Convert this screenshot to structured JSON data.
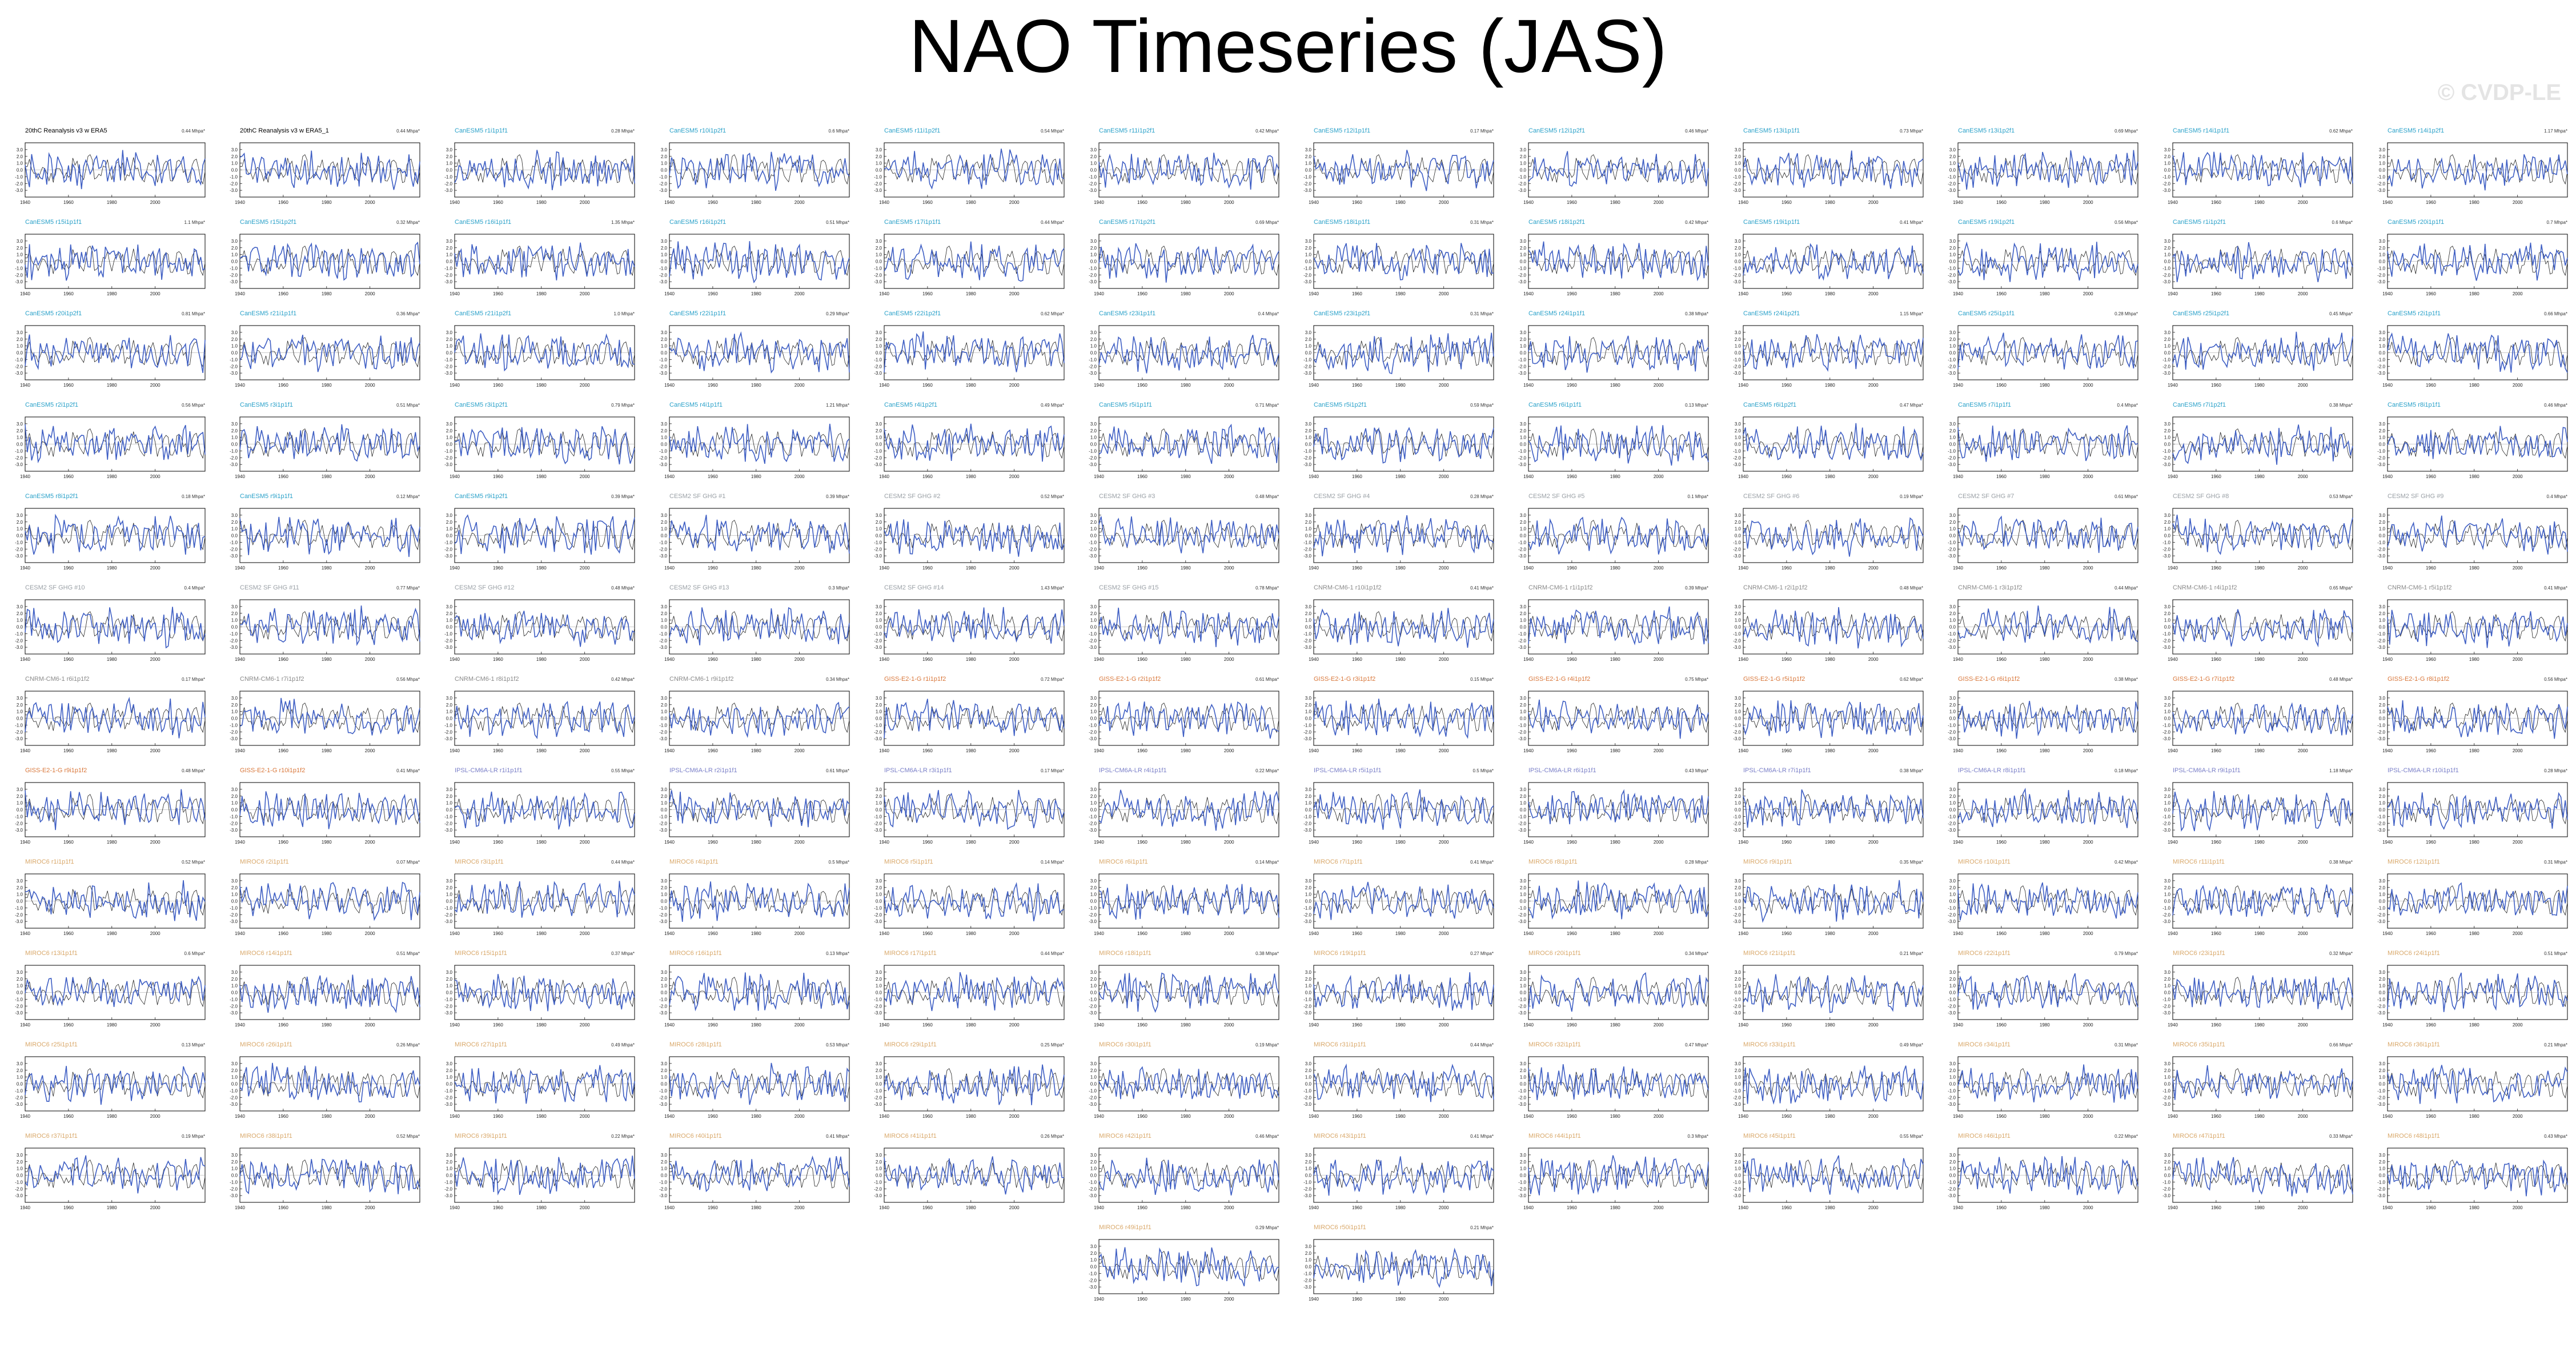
{
  "title": "NAO Timeseries (JAS)",
  "watermark": "© CVDP-LE",
  "colors": {
    "model_line": "#3f5fc4",
    "obs_line": "#222222",
    "title_obs": "#000000",
    "title_cesm": "#2aa1c9",
    "title_cesm_sf": "#9aa0a6",
    "title_cnrm": "#8a8a8a",
    "title_giss": "#d9773a",
    "title_ipsl": "#7a7fc8",
    "title_miroc": "#d9a86a"
  },
  "chart_data": {
    "type": "line",
    "layout": "panel-grid",
    "xlim": [
      1940,
      2023
    ],
    "ylim": [
      -4,
      4
    ],
    "xticks": [
      1940,
      1960,
      1980,
      2000
    ],
    "yticks": [
      3.0,
      2.0,
      1.0,
      0.0,
      -1.0,
      -2.0,
      -3.0
    ],
    "panels": [
      {
        "title": "20thC Reanalysis v3 w ERA5",
        "group": "obs",
        "stat": "0.44 Mhpa*",
        "seed": 1
      },
      {
        "title": "20thC Reanalysis v3 w ERA5_1",
        "group": "obs",
        "stat": "0.44 Mhpa*",
        "seed": 2
      },
      {
        "title": "CanESM5 r1i1p1f1",
        "group": "cesm",
        "stat": "0.28 Mhpa*",
        "seed": 3
      },
      {
        "title": "CanESM5 r10i1p2f1",
        "group": "cesm",
        "stat": "0.6 Mhpa*",
        "seed": 4
      },
      {
        "title": "CanESM5 r11i1p2f1",
        "group": "cesm",
        "stat": "0.54 Mhpa*",
        "seed": 5
      },
      {
        "title": "CanESM5 r11i1p2f1",
        "group": "cesm",
        "stat": "0.42 Mhpa*",
        "seed": 6
      },
      {
        "title": "CanESM5 r12i1p1f1",
        "group": "cesm",
        "stat": "0.17 Mhpa*",
        "seed": 7
      },
      {
        "title": "CanESM5 r12i1p2f1",
        "group": "cesm",
        "stat": "0.46 Mhpa*",
        "seed": 8
      },
      {
        "title": "CanESM5 r13i1p1f1",
        "group": "cesm",
        "stat": "0.73 Mhpa*",
        "seed": 9
      },
      {
        "title": "CanESM5 r13i1p2f1",
        "group": "cesm",
        "stat": "0.69 Mhpa*",
        "seed": 10
      },
      {
        "title": "CanESM5 r14i1p1f1",
        "group": "cesm",
        "stat": "0.62 Mhpa*",
        "seed": 11
      },
      {
        "title": "CanESM5 r14i1p2f1",
        "group": "cesm",
        "stat": "1.17 Mhpa*",
        "seed": 12
      },
      {
        "title": "CanESM5 r15i1p1f1",
        "group": "cesm",
        "stat": "1.1 Mhpa*",
        "seed": 13
      },
      {
        "title": "CanESM5 r15i1p2f1",
        "group": "cesm",
        "stat": "0.32 Mhpa*",
        "seed": 14
      },
      {
        "title": "CanESM5 r16i1p1f1",
        "group": "cesm",
        "stat": "1.35 Mhpa*",
        "seed": 15
      },
      {
        "title": "CanESM5 r16i1p2f1",
        "group": "cesm",
        "stat": "0.51 Mhpa*",
        "seed": 16
      },
      {
        "title": "CanESM5 r17i1p1f1",
        "group": "cesm",
        "stat": "0.44 Mhpa*",
        "seed": 17
      },
      {
        "title": "CanESM5 r17i1p2f1",
        "group": "cesm",
        "stat": "0.69 Mhpa*",
        "seed": 18
      },
      {
        "title": "CanESM5 r18i1p1f1",
        "group": "cesm",
        "stat": "0.31 Mhpa*",
        "seed": 19
      },
      {
        "title": "CanESM5 r18i1p2f1",
        "group": "cesm",
        "stat": "0.42 Mhpa*",
        "seed": 20
      },
      {
        "title": "CanESM5 r19i1p1f1",
        "group": "cesm",
        "stat": "0.41 Mhpa*",
        "seed": 21
      },
      {
        "title": "CanESM5 r19i1p2f1",
        "group": "cesm",
        "stat": "0.56 Mhpa*",
        "seed": 22
      },
      {
        "title": "CanESM5 r1i1p2f1",
        "group": "cesm",
        "stat": "0.6 Mhpa*",
        "seed": 23
      },
      {
        "title": "CanESM5 r20i1p1f1",
        "group": "cesm",
        "stat": "0.7 Mhpa*",
        "seed": 24
      },
      {
        "title": "CanESM5 r20i1p2f1",
        "group": "cesm",
        "stat": "0.81 Mhpa*",
        "seed": 25
      },
      {
        "title": "CanESM5 r21i1p1f1",
        "group": "cesm",
        "stat": "0.36 Mhpa*",
        "seed": 26
      },
      {
        "title": "CanESM5 r21i1p2f1",
        "group": "cesm",
        "stat": "1.0 Mhpa*",
        "seed": 27
      },
      {
        "title": "CanESM5 r22i1p1f1",
        "group": "cesm",
        "stat": "0.29 Mhpa*",
        "seed": 28
      },
      {
        "title": "CanESM5 r22i1p2f1",
        "group": "cesm",
        "stat": "0.62 Mhpa*",
        "seed": 29
      },
      {
        "title": "CanESM5 r23i1p1f1",
        "group": "cesm",
        "stat": "0.4 Mhpa*",
        "seed": 30
      },
      {
        "title": "CanESM5 r23i1p2f1",
        "group": "cesm",
        "stat": "0.31 Mhpa*",
        "seed": 31
      },
      {
        "title": "CanESM5 r24i1p1f1",
        "group": "cesm",
        "stat": "0.38 Mhpa*",
        "seed": 32
      },
      {
        "title": "CanESM5 r24i1p2f1",
        "group": "cesm",
        "stat": "1.15 Mhpa*",
        "seed": 33
      },
      {
        "title": "CanESM5 r25i1p1f1",
        "group": "cesm",
        "stat": "0.28 Mhpa*",
        "seed": 34
      },
      {
        "title": "CanESM5 r25i1p2f1",
        "group": "cesm",
        "stat": "0.45 Mhpa*",
        "seed": 35
      },
      {
        "title": "CanESM5 r2i1p1f1",
        "group": "cesm",
        "stat": "0.66 Mhpa*",
        "seed": 36
      },
      {
        "title": "CanESM5 r2i1p2f1",
        "group": "cesm",
        "stat": "0.56 Mhpa*",
        "seed": 37
      },
      {
        "title": "CanESM5 r3i1p1f1",
        "group": "cesm",
        "stat": "0.51 Mhpa*",
        "seed": 38
      },
      {
        "title": "CanESM5 r3i1p2f1",
        "group": "cesm",
        "stat": "0.79 Mhpa*",
        "seed": 39
      },
      {
        "title": "CanESM5 r4i1p1f1",
        "group": "cesm",
        "stat": "1.21 Mhpa*",
        "seed": 40
      },
      {
        "title": "CanESM5 r4i1p2f1",
        "group": "cesm",
        "stat": "0.49 Mhpa*",
        "seed": 41
      },
      {
        "title": "CanESM5 r5i1p1f1",
        "group": "cesm",
        "stat": "0.71 Mhpa*",
        "seed": 42
      },
      {
        "title": "CanESM5 r5i1p2f1",
        "group": "cesm",
        "stat": "0.59 Mhpa*",
        "seed": 43
      },
      {
        "title": "CanESM5 r6i1p1f1",
        "group": "cesm",
        "stat": "0.13 Mhpa*",
        "seed": 44
      },
      {
        "title": "CanESM5 r6i1p2f1",
        "group": "cesm",
        "stat": "0.47 Mhpa*",
        "seed": 45
      },
      {
        "title": "CanESM5 r7i1p1f1",
        "group": "cesm",
        "stat": "0.4 Mhpa*",
        "seed": 46
      },
      {
        "title": "CanESM5 r7i1p2f1",
        "group": "cesm",
        "stat": "0.38 Mhpa*",
        "seed": 47
      },
      {
        "title": "CanESM5 r8i1p1f1",
        "group": "cesm",
        "stat": "0.46 Mhpa*",
        "seed": 48
      },
      {
        "title": "CanESM5 r8i1p2f1",
        "group": "cesm",
        "stat": "0.18 Mhpa*",
        "seed": 49
      },
      {
        "title": "CanESM5 r9i1p1f1",
        "group": "cesm",
        "stat": "0.12 Mhpa*",
        "seed": 50
      },
      {
        "title": "CanESM5 r9i1p2f1",
        "group": "cesm",
        "stat": "0.39 Mhpa*",
        "seed": 51
      },
      {
        "title": "CESM2 SF GHG #1",
        "group": "cesm_sf",
        "stat": "0.39 Mhpa*",
        "seed": 52
      },
      {
        "title": "CESM2 SF GHG #2",
        "group": "cesm_sf",
        "stat": "0.52 Mhpa*",
        "seed": 53
      },
      {
        "title": "CESM2 SF GHG #3",
        "group": "cesm_sf",
        "stat": "0.48 Mhpa*",
        "seed": 54
      },
      {
        "title": "CESM2 SF GHG #4",
        "group": "cesm_sf",
        "stat": "0.28 Mhpa*",
        "seed": 55
      },
      {
        "title": "CESM2 SF GHG #5",
        "group": "cesm_sf",
        "stat": "0.1 Mhpa*",
        "seed": 56
      },
      {
        "title": "CESM2 SF GHG #6",
        "group": "cesm_sf",
        "stat": "0.19 Mhpa*",
        "seed": 57
      },
      {
        "title": "CESM2 SF GHG #7",
        "group": "cesm_sf",
        "stat": "0.61 Mhpa*",
        "seed": 58
      },
      {
        "title": "CESM2 SF GHG #8",
        "group": "cesm_sf",
        "stat": "0.53 Mhpa*",
        "seed": 59
      },
      {
        "title": "CESM2 SF GHG #9",
        "group": "cesm_sf",
        "stat": "0.4 Mhpa*",
        "seed": 60
      },
      {
        "title": "CESM2 SF GHG #10",
        "group": "cesm_sf",
        "stat": "0.4 Mhpa*",
        "seed": 61
      },
      {
        "title": "CESM2 SF GHG #11",
        "group": "cesm_sf",
        "stat": "0.77 Mhpa*",
        "seed": 62
      },
      {
        "title": "CESM2 SF GHG #12",
        "group": "cesm_sf",
        "stat": "0.48 Mhpa*",
        "seed": 63
      },
      {
        "title": "CESM2 SF GHG #13",
        "group": "cesm_sf",
        "stat": "0.3 Mhpa*",
        "seed": 64
      },
      {
        "title": "CESM2 SF GHG #14",
        "group": "cesm_sf",
        "stat": "1.43 Mhpa*",
        "seed": 65
      },
      {
        "title": "CESM2 SF GHG #15",
        "group": "cesm_sf",
        "stat": "0.78 Mhpa*",
        "seed": 66
      },
      {
        "title": "CNRM-CM6-1 r10i1p1f2",
        "group": "cnrm",
        "stat": "0.41 Mhpa*",
        "seed": 67
      },
      {
        "title": "CNRM-CM6-1 r1i1p1f2",
        "group": "cnrm",
        "stat": "0.39 Mhpa*",
        "seed": 68
      },
      {
        "title": "CNRM-CM6-1 r2i1p1f2",
        "group": "cnrm",
        "stat": "0.48 Mhpa*",
        "seed": 69
      },
      {
        "title": "CNRM-CM6-1 r3i1p1f2",
        "group": "cnrm",
        "stat": "0.44 Mhpa*",
        "seed": 70
      },
      {
        "title": "CNRM-CM6-1 r4i1p1f2",
        "group": "cnrm",
        "stat": "0.65 Mhpa*",
        "seed": 71
      },
      {
        "title": "CNRM-CM6-1 r5i1p1f2",
        "group": "cnrm",
        "stat": "0.41 Mhpa*",
        "seed": 72
      },
      {
        "title": "CNRM-CM6-1 r6i1p1f2",
        "group": "cnrm",
        "stat": "0.17 Mhpa*",
        "seed": 73
      },
      {
        "title": "CNRM-CM6-1 r7i1p1f2",
        "group": "cnrm",
        "stat": "0.56 Mhpa*",
        "seed": 74
      },
      {
        "title": "CNRM-CM6-1 r8i1p1f2",
        "group": "cnrm",
        "stat": "0.42 Mhpa*",
        "seed": 75
      },
      {
        "title": "CNRM-CM6-1 r9i1p1f2",
        "group": "cnrm",
        "stat": "0.34 Mhpa*",
        "seed": 76
      },
      {
        "title": "GISS-E2-1-G r1i1p1f2",
        "group": "giss",
        "stat": "0.72 Mhpa*",
        "seed": 77
      },
      {
        "title": "GISS-E2-1-G r2i1p1f2",
        "group": "giss",
        "stat": "0.61 Mhpa*",
        "seed": 78
      },
      {
        "title": "GISS-E2-1-G r3i1p1f2",
        "group": "giss",
        "stat": "0.15 Mhpa*",
        "seed": 79
      },
      {
        "title": "GISS-E2-1-G r4i1p1f2",
        "group": "giss",
        "stat": "0.75 Mhpa*",
        "seed": 80
      },
      {
        "title": "GISS-E2-1-G r5i1p1f2",
        "group": "giss",
        "stat": "0.62 Mhpa*",
        "seed": 81
      },
      {
        "title": "GISS-E2-1-G r6i1p1f2",
        "group": "giss",
        "stat": "0.38 Mhpa*",
        "seed": 82
      },
      {
        "title": "GISS-E2-1-G r7i1p1f2",
        "group": "giss",
        "stat": "0.48 Mhpa*",
        "seed": 83
      },
      {
        "title": "GISS-E2-1-G r8i1p1f2",
        "group": "giss",
        "stat": "0.56 Mhpa*",
        "seed": 84
      },
      {
        "title": "GISS-E2-1-G r9i1p1f2",
        "group": "giss",
        "stat": "0.48 Mhpa*",
        "seed": 85
      },
      {
        "title": "GISS-E2-1-G r10i1p1f2",
        "group": "giss",
        "stat": "0.41 Mhpa*",
        "seed": 86
      },
      {
        "title": "IPSL-CM6A-LR r1i1p1f1",
        "group": "ipsl",
        "stat": "0.55 Mhpa*",
        "seed": 87
      },
      {
        "title": "IPSL-CM6A-LR r2i1p1f1",
        "group": "ipsl",
        "stat": "0.61 Mhpa*",
        "seed": 88
      },
      {
        "title": "IPSL-CM6A-LR r3i1p1f1",
        "group": "ipsl",
        "stat": "0.17 Mhpa*",
        "seed": 89
      },
      {
        "title": "IPSL-CM6A-LR r4i1p1f1",
        "group": "ipsl",
        "stat": "0.22 Mhpa*",
        "seed": 90
      },
      {
        "title": "IPSL-CM6A-LR r5i1p1f1",
        "group": "ipsl",
        "stat": "0.5 Mhpa*",
        "seed": 91
      },
      {
        "title": "IPSL-CM6A-LR r6i1p1f1",
        "group": "ipsl",
        "stat": "0.43 Mhpa*",
        "seed": 92
      },
      {
        "title": "IPSL-CM6A-LR r7i1p1f1",
        "group": "ipsl",
        "stat": "0.38 Mhpa*",
        "seed": 93
      },
      {
        "title": "IPSL-CM6A-LR r8i1p1f1",
        "group": "ipsl",
        "stat": "0.18 Mhpa*",
        "seed": 94
      },
      {
        "title": "IPSL-CM6A-LR r9i1p1f1",
        "group": "ipsl",
        "stat": "1.18 Mhpa*",
        "seed": 95
      },
      {
        "title": "IPSL-CM6A-LR r10i1p1f1",
        "group": "ipsl",
        "stat": "0.28 Mhpa*",
        "seed": 96
      },
      {
        "title": "MIROC6 r1i1p1f1",
        "group": "miroc",
        "stat": "0.52 Mhpa*",
        "seed": 97
      },
      {
        "title": "MIROC6 r2i1p1f1",
        "group": "miroc",
        "stat": "0.07 Mhpa*",
        "seed": 98
      },
      {
        "title": "MIROC6 r3i1p1f1",
        "group": "miroc",
        "stat": "0.44 Mhpa*",
        "seed": 99
      },
      {
        "title": "MIROC6 r4i1p1f1",
        "group": "miroc",
        "stat": "0.5 Mhpa*",
        "seed": 100
      },
      {
        "title": "MIROC6 r5i1p1f1",
        "group": "miroc",
        "stat": "0.14 Mhpa*",
        "seed": 101
      },
      {
        "title": "MIROC6 r6i1p1f1",
        "group": "miroc",
        "stat": "0.14 Mhpa*",
        "seed": 102
      },
      {
        "title": "MIROC6 r7i1p1f1",
        "group": "miroc",
        "stat": "0.41 Mhpa*",
        "seed": 103
      },
      {
        "title": "MIROC6 r8i1p1f1",
        "group": "miroc",
        "stat": "0.28 Mhpa*",
        "seed": 104
      },
      {
        "title": "MIROC6 r9i1p1f1",
        "group": "miroc",
        "stat": "0.35 Mhpa*",
        "seed": 105
      },
      {
        "title": "MIROC6 r10i1p1f1",
        "group": "miroc",
        "stat": "0.42 Mhpa*",
        "seed": 106
      },
      {
        "title": "MIROC6 r11i1p1f1",
        "group": "miroc",
        "stat": "0.38 Mhpa*",
        "seed": 107
      },
      {
        "title": "MIROC6 r12i1p1f1",
        "group": "miroc",
        "stat": "0.31 Mhpa*",
        "seed": 108
      },
      {
        "title": "MIROC6 r13i1p1f1",
        "group": "miroc",
        "stat": "0.6 Mhpa*",
        "seed": 109
      },
      {
        "title": "MIROC6 r14i1p1f1",
        "group": "miroc",
        "stat": "0.51 Mhpa*",
        "seed": 110
      },
      {
        "title": "MIROC6 r15i1p1f1",
        "group": "miroc",
        "stat": "0.37 Mhpa*",
        "seed": 111
      },
      {
        "title": "MIROC6 r16i1p1f1",
        "group": "miroc",
        "stat": "0.13 Mhpa*",
        "seed": 112
      },
      {
        "title": "MIROC6 r17i1p1f1",
        "group": "miroc",
        "stat": "0.44 Mhpa*",
        "seed": 113
      },
      {
        "title": "MIROC6 r18i1p1f1",
        "group": "miroc",
        "stat": "0.38 Mhpa*",
        "seed": 114
      },
      {
        "title": "MIROC6 r19i1p1f1",
        "group": "miroc",
        "stat": "0.27 Mhpa*",
        "seed": 115
      },
      {
        "title": "MIROC6 r20i1p1f1",
        "group": "miroc",
        "stat": "0.34 Mhpa*",
        "seed": 116
      },
      {
        "title": "MIROC6 r21i1p1f1",
        "group": "miroc",
        "stat": "0.21 Mhpa*",
        "seed": 117
      },
      {
        "title": "MIROC6 r22i1p1f1",
        "group": "miroc",
        "stat": "0.79 Mhpa*",
        "seed": 118
      },
      {
        "title": "MIROC6 r23i1p1f1",
        "group": "miroc",
        "stat": "0.32 Mhpa*",
        "seed": 119
      },
      {
        "title": "MIROC6 r24i1p1f1",
        "group": "miroc",
        "stat": "0.51 Mhpa*",
        "seed": 120
      },
      {
        "title": "MIROC6 r25i1p1f1",
        "group": "miroc",
        "stat": "0.13 Mhpa*",
        "seed": 121
      },
      {
        "title": "MIROC6 r26i1p1f1",
        "group": "miroc",
        "stat": "0.26 Mhpa*",
        "seed": 122
      },
      {
        "title": "MIROC6 r27i1p1f1",
        "group": "miroc",
        "stat": "0.49 Mhpa*",
        "seed": 123
      },
      {
        "title": "MIROC6 r28i1p1f1",
        "group": "miroc",
        "stat": "0.53 Mhpa*",
        "seed": 124
      },
      {
        "title": "MIROC6 r29i1p1f1",
        "group": "miroc",
        "stat": "0.25 Mhpa*",
        "seed": 125
      },
      {
        "title": "MIROC6 r30i1p1f1",
        "group": "miroc",
        "stat": "0.19 Mhpa*",
        "seed": 126
      },
      {
        "title": "MIROC6 r31i1p1f1",
        "group": "miroc",
        "stat": "0.44 Mhpa*",
        "seed": 127
      },
      {
        "title": "MIROC6 r32i1p1f1",
        "group": "miroc",
        "stat": "0.47 Mhpa*",
        "seed": 128
      },
      {
        "title": "MIROC6 r33i1p1f1",
        "group": "miroc",
        "stat": "0.49 Mhpa*",
        "seed": 129
      },
      {
        "title": "MIROC6 r34i1p1f1",
        "group": "miroc",
        "stat": "0.31 Mhpa*",
        "seed": 130
      },
      {
        "title": "MIROC6 r35i1p1f1",
        "group": "miroc",
        "stat": "0.66 Mhpa*",
        "seed": 131
      },
      {
        "title": "MIROC6 r36i1p1f1",
        "group": "miroc",
        "stat": "0.21 Mhpa*",
        "seed": 132
      },
      {
        "title": "MIROC6 r37i1p1f1",
        "group": "miroc",
        "stat": "0.19 Mhpa*",
        "seed": 133
      },
      {
        "title": "MIROC6 r38i1p1f1",
        "group": "miroc",
        "stat": "0.52 Mhpa*",
        "seed": 134
      },
      {
        "title": "MIROC6 r39i1p1f1",
        "group": "miroc",
        "stat": "0.22 Mhpa*",
        "seed": 135
      },
      {
        "title": "MIROC6 r40i1p1f1",
        "group": "miroc",
        "stat": "0.41 Mhpa*",
        "seed": 136
      },
      {
        "title": "MIROC6 r41i1p1f1",
        "group": "miroc",
        "stat": "0.26 Mhpa*",
        "seed": 137
      },
      {
        "title": "MIROC6 r42i1p1f1",
        "group": "miroc",
        "stat": "0.46 Mhpa*",
        "seed": 138
      },
      {
        "title": "MIROC6 r43i1p1f1",
        "group": "miroc",
        "stat": "0.41 Mhpa*",
        "seed": 139
      },
      {
        "title": "MIROC6 r44i1p1f1",
        "group": "miroc",
        "stat": "0.3 Mhpa*",
        "seed": 140
      },
      {
        "title": "MIROC6 r45i1p1f1",
        "group": "miroc",
        "stat": "0.55 Mhpa*",
        "seed": 141
      },
      {
        "title": "MIROC6 r46i1p1f1",
        "group": "miroc",
        "stat": "0.22 Mhpa*",
        "seed": 142
      },
      {
        "title": "MIROC6 r47i1p1f1",
        "group": "miroc",
        "stat": "0.33 Mhpa*",
        "seed": 143
      },
      {
        "title": "MIROC6 r48i1p1f1",
        "group": "miroc",
        "stat": "0.43 Mhpa*",
        "seed": 144
      },
      {
        "title": "MIROC6 r49i1p1f1",
        "group": "miroc",
        "stat": "0.29 Mhpa*",
        "seed": 145
      },
      {
        "title": "MIROC6 r50i1p1f1",
        "group": "miroc",
        "stat": "0.21 Mhpa*",
        "seed": 146
      }
    ]
  }
}
